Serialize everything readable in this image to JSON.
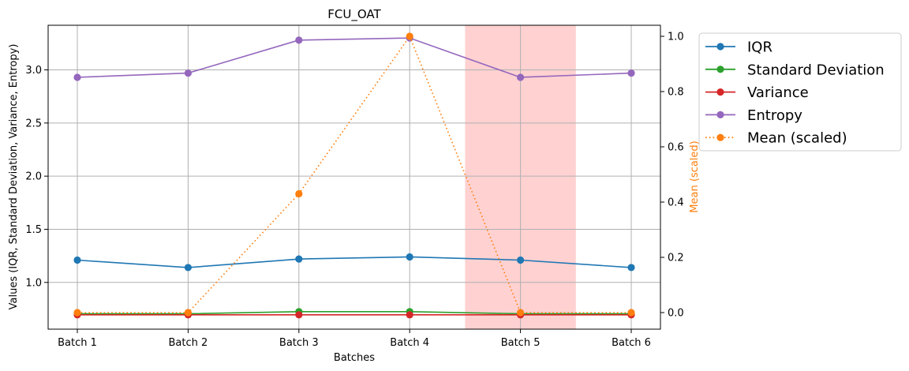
{
  "chart_data": {
    "type": "line",
    "title": "FCU_OAT",
    "xlabel": "Batches",
    "ylabel": "Values (IQR, Standard Deviation, Variance, Entropy)",
    "y2label": "Mean (scaled)",
    "categories": [
      "Batch 1",
      "Batch 2",
      "Batch 3",
      "Batch 4",
      "Batch 5",
      "Batch 6"
    ],
    "ylim": [
      0.56,
      3.42
    ],
    "y2lim": [
      -0.06,
      1.04
    ],
    "yticks": [
      "1.0",
      "1.5",
      "2.0",
      "2.5",
      "3.0"
    ],
    "y2ticks": [
      "0.0",
      "0.2",
      "0.4",
      "0.6",
      "0.8",
      "1.0"
    ],
    "grid": true,
    "legend_position": "outside-top-right",
    "highlight_region": {
      "from_category": "Batch 5",
      "color": "#ffcccc"
    },
    "series": [
      {
        "name": "IQR",
        "axis": "left",
        "style": "solid",
        "color": "#1f77b4",
        "values": [
          1.21,
          1.14,
          1.22,
          1.24,
          1.21,
          1.14
        ]
      },
      {
        "name": "Standard Deviation",
        "axis": "left",
        "style": "solid",
        "color": "#2ca02c",
        "values": [
          0.705,
          0.705,
          0.725,
          0.725,
          0.705,
          0.705
        ]
      },
      {
        "name": "Variance",
        "axis": "left",
        "style": "solid",
        "color": "#d62728",
        "values": [
          0.695,
          0.695,
          0.695,
          0.695,
          0.695,
          0.695
        ]
      },
      {
        "name": "Entropy",
        "axis": "left",
        "style": "solid",
        "color": "#9467bd",
        "values": [
          2.93,
          2.97,
          3.28,
          3.3,
          2.93,
          2.97
        ]
      },
      {
        "name": "Mean (scaled)",
        "axis": "right",
        "style": "dotted",
        "color": "#ff7f0e",
        "values": [
          0.0,
          0.0,
          0.43,
          1.0,
          0.0,
          0.0
        ]
      }
    ]
  }
}
